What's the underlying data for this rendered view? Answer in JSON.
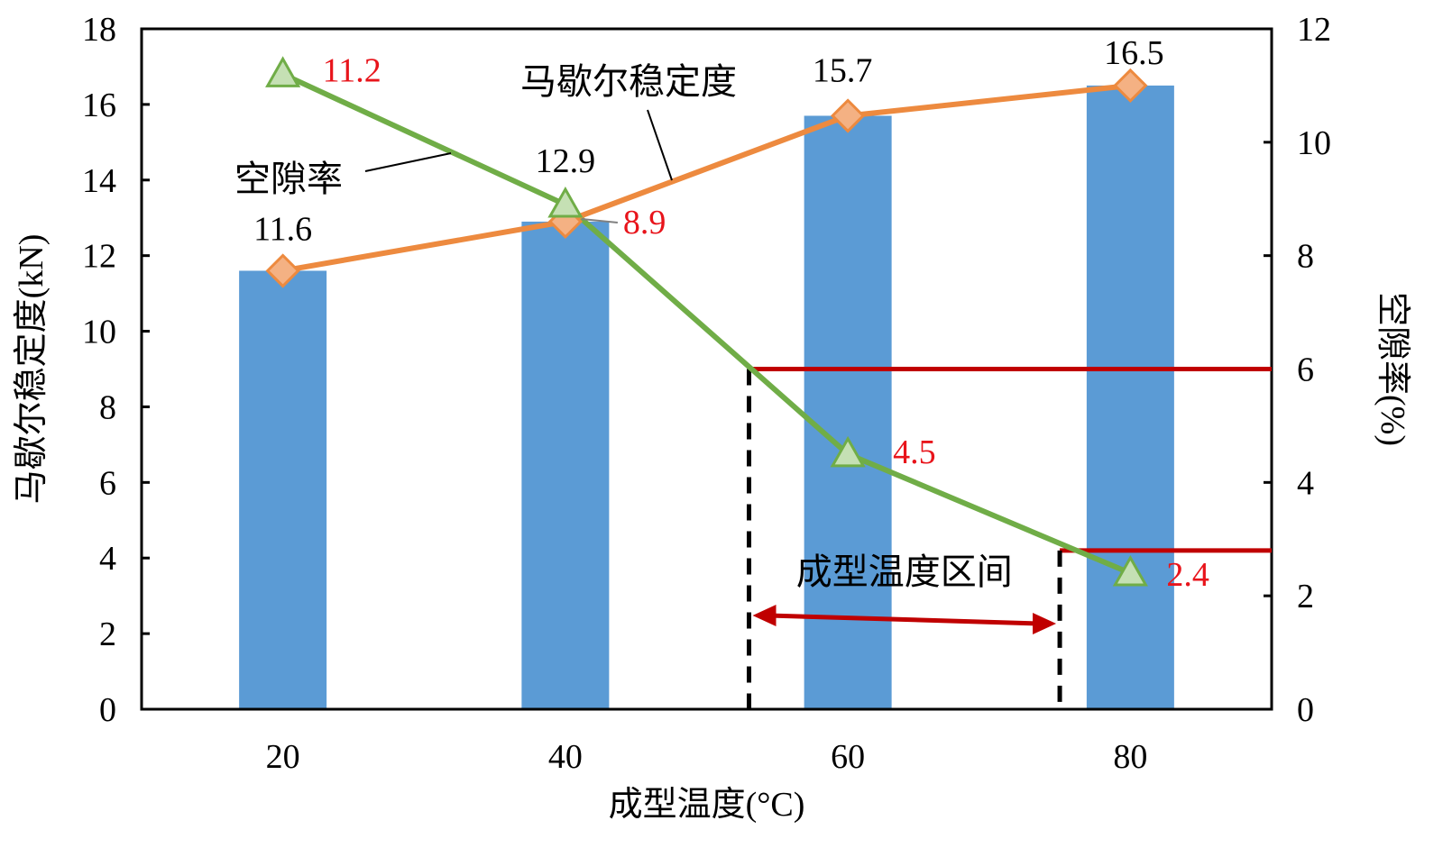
{
  "chart_data": {
    "type": "bar",
    "categories": [
      "20",
      "40",
      "60",
      "80"
    ],
    "xlabel": "成型温度(°C)",
    "ylabel_left": "马歇尔稳定度(kN)",
    "ylabel_right": "空隙率(%)",
    "ylim_left": [
      0,
      18
    ],
    "ylim_right": [
      0,
      12
    ],
    "yticks_left": [
      0,
      2,
      4,
      6,
      8,
      10,
      12,
      14,
      16,
      18
    ],
    "yticks_right": [
      0,
      2,
      4,
      6,
      8,
      10,
      12
    ],
    "grid": false,
    "series": [
      {
        "name": "马歇尔稳定度",
        "kind": "bar+line",
        "axis": "left",
        "values": [
          11.6,
          12.9,
          15.7,
          16.5
        ],
        "labels": [
          "11.6",
          "12.9",
          "15.7",
          "16.5"
        ],
        "bar_color": "#5b9bd5",
        "line_color": "#ed8a3f",
        "marker": "diamond"
      },
      {
        "name": "空隙率",
        "kind": "line",
        "axis": "right",
        "values": [
          11.2,
          8.9,
          4.5,
          2.4
        ],
        "labels": [
          "11.2",
          "8.9",
          "4.5",
          "2.4"
        ],
        "line_color": "#70ad47",
        "marker": "triangle",
        "label_color": "#e8141b"
      }
    ],
    "annotations": {
      "range_label": "成型温度区间",
      "range_x": [
        53,
        75
      ],
      "range_void_levels": [
        6,
        2.8
      ],
      "range_color": "#c00000"
    }
  }
}
